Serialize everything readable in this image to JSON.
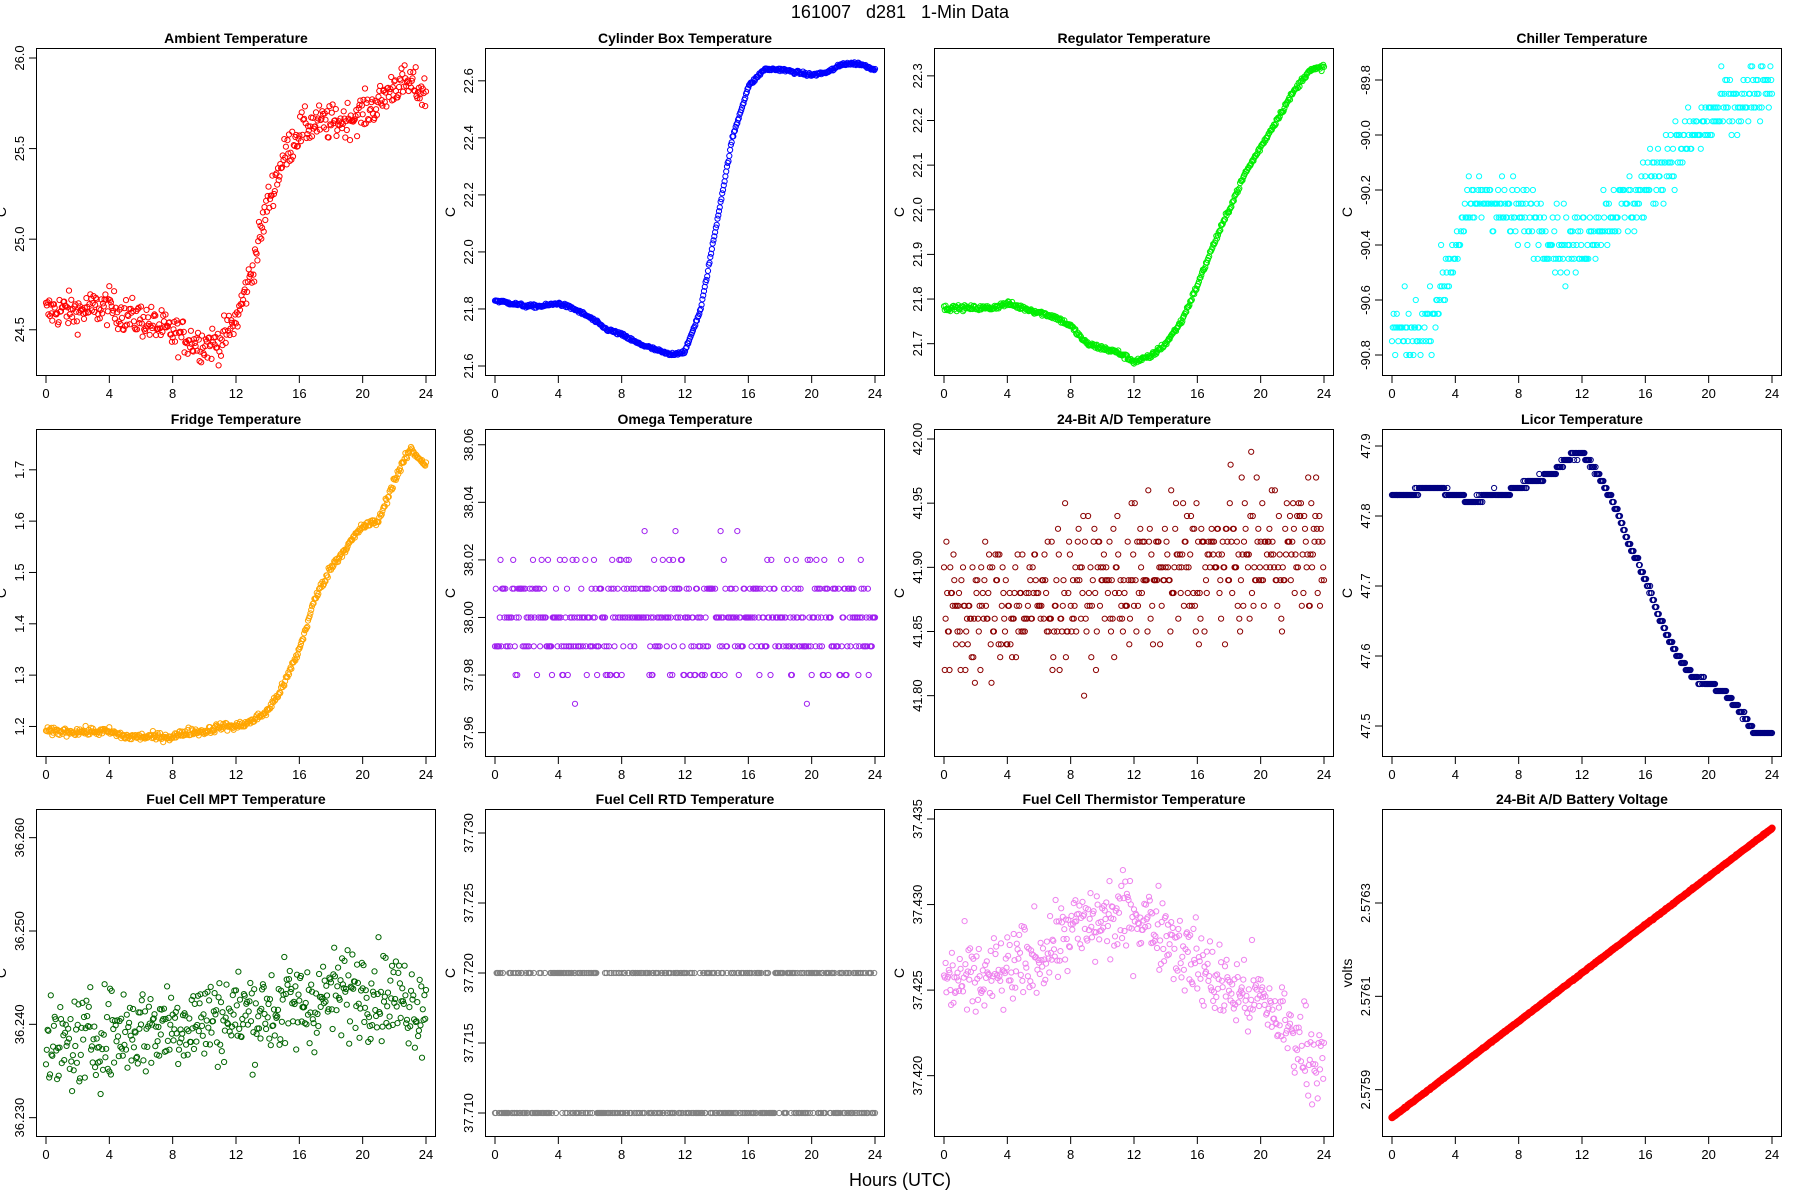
{
  "figure": {
    "title": "161007   d281   1-Min Data",
    "xlabel": "Hours (UTC)"
  },
  "chart_data": [
    {
      "type": "scatter",
      "title": "Ambient Temperature",
      "ylabel": "C",
      "color": "#ff0000",
      "xlim": [
        0,
        24
      ],
      "ylim": [
        24.3,
        26.0
      ],
      "xticks": [
        0,
        4,
        8,
        12,
        16,
        20,
        24
      ],
      "yticks": [
        "24.5",
        "25.0",
        "25.5",
        "26.0"
      ],
      "trend_x": [
        0,
        1,
        2,
        3,
        4,
        5,
        6,
        7,
        8,
        9,
        10,
        11,
        12,
        13,
        14,
        15,
        16,
        17,
        18,
        19,
        20,
        21,
        22,
        23,
        24
      ],
      "trend_y": [
        24.6,
        24.61,
        24.6,
        24.62,
        24.63,
        24.58,
        24.56,
        24.52,
        24.48,
        24.45,
        24.42,
        24.43,
        24.55,
        24.82,
        25.2,
        25.45,
        25.6,
        25.64,
        25.64,
        25.66,
        25.7,
        25.75,
        25.85,
        25.86,
        25.8
      ],
      "noise": 0.05
    },
    {
      "type": "scatter",
      "title": "Cylinder Box Temperature",
      "ylabel": "C",
      "color": "#0000ff",
      "xlim": [
        0,
        24
      ],
      "ylim": [
        21.6,
        22.68
      ],
      "xticks": [
        0,
        4,
        8,
        12,
        16,
        20,
        24
      ],
      "yticks": [
        "21.6",
        "21.8",
        "22.0",
        "22.2",
        "22.4",
        "22.6"
      ],
      "trend_x": [
        0,
        1,
        2,
        3,
        4,
        5,
        6,
        7,
        8,
        9,
        10,
        11,
        12,
        13,
        14,
        15,
        16,
        17,
        18,
        19,
        20,
        21,
        22,
        23,
        24
      ],
      "trend_y": [
        21.83,
        21.82,
        21.81,
        21.81,
        21.82,
        21.8,
        21.77,
        21.73,
        21.71,
        21.68,
        21.66,
        21.64,
        21.65,
        21.8,
        22.1,
        22.4,
        22.58,
        22.64,
        22.64,
        22.63,
        22.62,
        22.63,
        22.66,
        22.66,
        22.64
      ],
      "noise": 0.003
    },
    {
      "type": "scatter",
      "title": "Regulator Temperature",
      "ylabel": "C",
      "color": "#00ee00",
      "xlim": [
        0,
        24
      ],
      "ylim": [
        21.65,
        22.34
      ],
      "xticks": [
        0,
        4,
        8,
        12,
        16,
        20,
        24
      ],
      "yticks": [
        "21.7",
        "21.8",
        "21.9",
        "22.0",
        "22.1",
        "22.2",
        "22.3"
      ],
      "trend_x": [
        0,
        1,
        2,
        3,
        4,
        5,
        6,
        7,
        8,
        9,
        10,
        11,
        12,
        13,
        14,
        15,
        16,
        17,
        18,
        19,
        20,
        21,
        22,
        23,
        24
      ],
      "trend_y": [
        21.78,
        21.78,
        21.78,
        21.78,
        21.79,
        21.78,
        21.77,
        21.76,
        21.74,
        21.7,
        21.69,
        21.68,
        21.66,
        21.67,
        21.7,
        21.75,
        21.83,
        21.92,
        22.0,
        22.08,
        22.14,
        22.2,
        22.26,
        22.31,
        22.32
      ],
      "noise": 0.003
    },
    {
      "type": "scatter",
      "title": "Chiller Temperature",
      "ylabel": "C",
      "color": "#00ffff",
      "xlim": [
        0,
        24
      ],
      "ylim": [
        -90.84,
        -89.72
      ],
      "xticks": [
        0,
        4,
        8,
        12,
        16,
        20,
        24
      ],
      "yticks": [
        "-90.8",
        "-90.6",
        "-90.4",
        "-90.2",
        "-90.0",
        "-89.8"
      ],
      "trend_x": [
        0,
        1,
        2,
        3,
        4,
        5,
        6,
        7,
        8,
        9,
        10,
        11,
        12,
        13,
        14,
        15,
        16,
        17,
        18,
        19,
        20,
        21,
        22,
        23,
        24
      ],
      "trend_y": [
        -90.72,
        -90.74,
        -90.72,
        -90.58,
        -90.42,
        -90.27,
        -90.22,
        -90.27,
        -90.3,
        -90.3,
        -90.36,
        -90.4,
        -90.4,
        -90.32,
        -90.27,
        -90.25,
        -90.2,
        -90.12,
        -90.05,
        -90.0,
        -89.95,
        -89.9,
        -89.9,
        -89.85,
        -89.82
      ],
      "noise": 0.06,
      "quantize": 0.05
    },
    {
      "type": "scatter",
      "title": "Fridge Temperature",
      "ylabel": "C",
      "color": "#ffa500",
      "xlim": [
        0,
        24
      ],
      "ylim": [
        1.16,
        1.76
      ],
      "xticks": [
        0,
        4,
        8,
        12,
        16,
        20,
        24
      ],
      "yticks": [
        "1.2",
        "1.3",
        "1.4",
        "1.5",
        "1.6",
        "1.7"
      ],
      "trend_x": [
        0,
        1,
        2,
        3,
        4,
        5,
        6,
        7,
        8,
        9,
        10,
        11,
        12,
        13,
        14,
        15,
        16,
        17,
        18,
        19,
        20,
        21,
        22,
        23,
        24
      ],
      "trend_y": [
        1.19,
        1.19,
        1.19,
        1.19,
        1.19,
        1.18,
        1.18,
        1.18,
        1.18,
        1.19,
        1.19,
        1.2,
        1.2,
        1.21,
        1.23,
        1.28,
        1.35,
        1.45,
        1.51,
        1.55,
        1.59,
        1.6,
        1.68,
        1.74,
        1.71
      ],
      "noise": 0.004
    },
    {
      "type": "scatter",
      "title": "Omega Temperature",
      "ylabel": "C",
      "color": "#a020f0",
      "xlim": [
        0,
        24
      ],
      "ylim": [
        37.955,
        38.062
      ],
      "xticks": [
        0,
        4,
        8,
        12,
        16,
        20,
        24
      ],
      "yticks": [
        "37.96",
        "37.98",
        "38.00",
        "38.02",
        "38.04",
        "38.06"
      ],
      "trend_x": [
        0,
        24
      ],
      "trend_y": [
        38.0,
        38.0
      ],
      "noise": 0.012,
      "quantize": 0.01
    },
    {
      "type": "scatter",
      "title": "24-Bit A/D Temperature",
      "ylabel": "C",
      "color": "#8b0000",
      "xlim": [
        0,
        24
      ],
      "ylim": [
        41.76,
        42.0
      ],
      "xticks": [
        0,
        4,
        8,
        12,
        16,
        20,
        24
      ],
      "yticks": [
        "41.80",
        "41.85",
        "41.90",
        "41.95",
        "42.00"
      ],
      "trend_x": [
        0,
        4,
        8,
        12,
        16,
        20,
        24
      ],
      "trend_y": [
        41.86,
        41.87,
        41.88,
        41.89,
        41.9,
        41.91,
        41.92
      ],
      "noise": 0.028,
      "quantize": 0.01
    },
    {
      "type": "scatter",
      "title": "Licor Temperature",
      "ylabel": "C",
      "color": "#000080",
      "xlim": [
        0,
        24
      ],
      "ylim": [
        47.47,
        47.91
      ],
      "xticks": [
        0,
        4,
        8,
        12,
        16,
        20,
        24
      ],
      "yticks": [
        "47.5",
        "47.6",
        "47.7",
        "47.8",
        "47.9"
      ],
      "trend_x": [
        0,
        1,
        2,
        3,
        4,
        5,
        6,
        7,
        8,
        9,
        10,
        11,
        12,
        13,
        14,
        15,
        16,
        17,
        18,
        19,
        20,
        21,
        22,
        23,
        24
      ],
      "trend_y": [
        47.83,
        47.83,
        47.84,
        47.84,
        47.83,
        47.82,
        47.83,
        47.83,
        47.84,
        47.85,
        47.86,
        47.88,
        47.89,
        47.86,
        47.82,
        47.76,
        47.71,
        47.65,
        47.6,
        47.57,
        47.56,
        47.55,
        47.52,
        47.49,
        47.49
      ],
      "noise": 0.002,
      "quantize": 0.01
    },
    {
      "type": "scatter",
      "title": "Fuel Cell MPT Temperature",
      "ylabel": "C",
      "color": "#006400",
      "xlim": [
        0,
        24
      ],
      "ylim": [
        36.229,
        36.262
      ],
      "xticks": [
        0,
        4,
        8,
        12,
        16,
        20,
        24
      ],
      "yticks": [
        "36.230",
        "36.240",
        "36.250",
        "36.260"
      ],
      "trend_x": [
        0,
        4,
        8,
        12,
        16,
        20,
        24
      ],
      "trend_y": [
        36.237,
        36.239,
        36.24,
        36.241,
        36.242,
        36.244,
        36.242
      ],
      "noise": 0.0025
    },
    {
      "type": "scatter",
      "title": "Fuel Cell RTD Temperature",
      "ylabel": "C",
      "color": "#808080",
      "xlim": [
        0,
        24
      ],
      "ylim": [
        37.709,
        37.731
      ],
      "xticks": [
        0,
        4,
        8,
        12,
        16,
        20,
        24
      ],
      "yticks": [
        "37.710",
        "37.715",
        "37.720",
        "37.725",
        "37.730"
      ],
      "trend_x": [
        0,
        24
      ],
      "trend_y": [
        37.715,
        37.715
      ],
      "noise": 0.0,
      "levels": [
        37.71,
        37.72
      ]
    },
    {
      "type": "scatter",
      "title": "Fuel Cell Thermistor Temperature",
      "ylabel": "C",
      "color": "#ee82ee",
      "xlim": [
        0,
        24
      ],
      "ylim": [
        37.417,
        37.435
      ],
      "xticks": [
        0,
        4,
        8,
        12,
        16,
        20,
        24
      ],
      "yticks": [
        "37.420",
        "37.425",
        "37.430",
        "37.435"
      ],
      "trend_x": [
        0,
        2,
        4,
        6,
        8,
        10,
        12,
        14,
        16,
        18,
        20,
        22,
        24
      ],
      "trend_y": [
        37.4255,
        37.4255,
        37.426,
        37.427,
        37.4285,
        37.429,
        37.4295,
        37.4285,
        37.4265,
        37.425,
        37.4245,
        37.4225,
        37.4205
      ],
      "noise": 0.0012
    },
    {
      "type": "line",
      "title": "24-Bit A/D Battery Voltage",
      "ylabel": "volts",
      "color": "#ff0000",
      "xlim": [
        0,
        24
      ],
      "ylim": [
        2.57582,
        2.57648
      ],
      "xticks": [
        0,
        4,
        8,
        12,
        16,
        20,
        24
      ],
      "yticks": [
        "2.5759",
        "2.5761",
        "2.5763"
      ],
      "trend_x": [
        0,
        24
      ],
      "trend_y": [
        2.57584,
        2.57646
      ],
      "noise": 5e-07
    }
  ]
}
